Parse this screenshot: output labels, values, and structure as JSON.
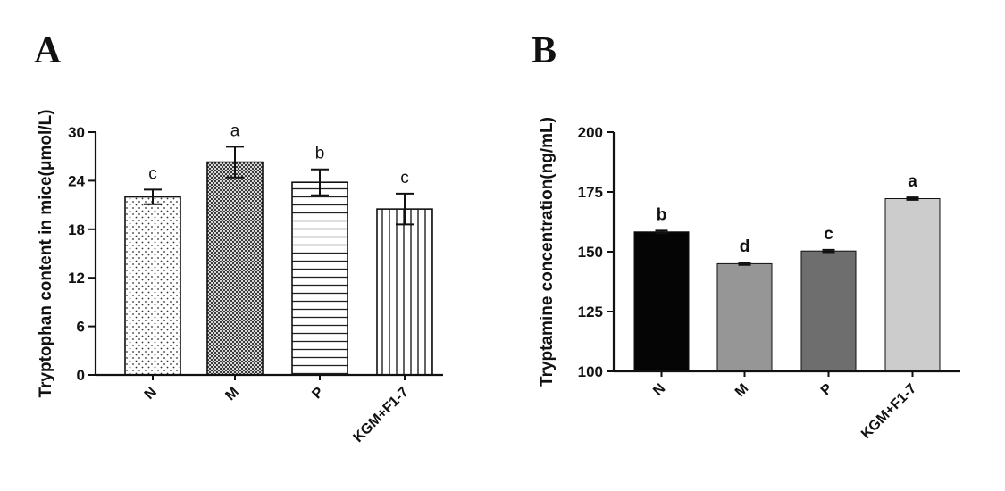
{
  "chart_data": [
    {
      "panel": "A",
      "type": "bar",
      "ylabel": "Tryptophan content in mice(μmol/L)",
      "xlabel": "",
      "ylim": [
        0,
        30
      ],
      "yticks": [
        0,
        6,
        12,
        18,
        24,
        30
      ],
      "categories": [
        "N",
        "M",
        "P",
        "KGM+F1-7"
      ],
      "values": [
        22.0,
        26.3,
        23.8,
        20.5
      ],
      "errors": [
        0.9,
        1.9,
        1.6,
        1.9
      ],
      "significance": [
        "c",
        "a",
        "b",
        "c"
      ],
      "patterns": [
        "dots",
        "crosshatch",
        "horizontal-lines",
        "vertical-lines"
      ],
      "grid": false
    },
    {
      "panel": "B",
      "type": "bar",
      "ylabel": "Tryptamine concentration(ng/mL)",
      "xlabel": "",
      "ylim": [
        100,
        200
      ],
      "yticks": [
        100,
        125,
        150,
        175,
        200
      ],
      "categories": [
        "N",
        "M",
        "P",
        "KGM+F1-7"
      ],
      "values": [
        158.3,
        145.0,
        150.3,
        172.2
      ],
      "errors": [
        0.5,
        0.5,
        0.5,
        0.5
      ],
      "significance": [
        "b",
        "d",
        "c",
        "a"
      ],
      "colors": [
        "#050505",
        "#969696",
        "#6e6e6e",
        "#cccccc"
      ],
      "grid": false
    }
  ]
}
